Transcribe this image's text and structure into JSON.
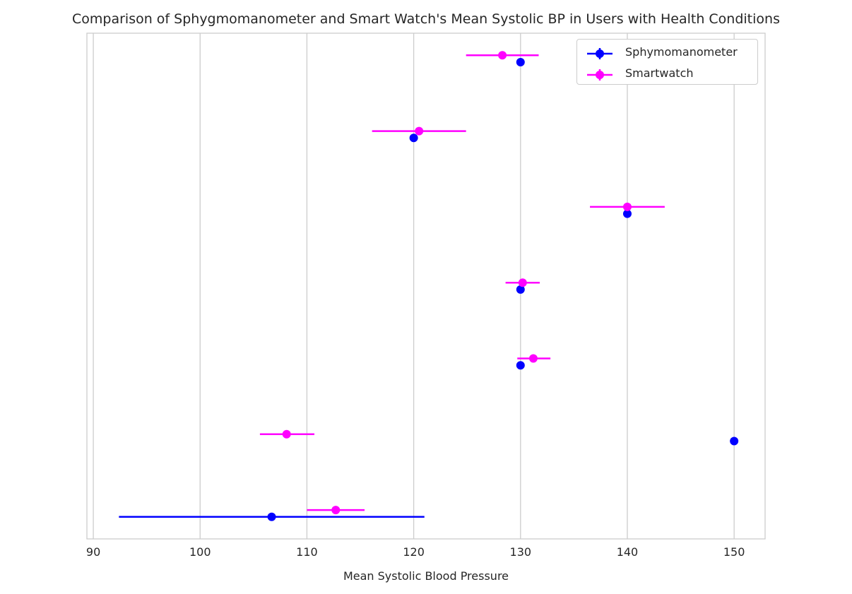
{
  "chart_data": {
    "type": "scatter",
    "title": "Comparison of Sphygmomanometer and Smart Watch's Mean Systolic BP in Users with Health Conditions",
    "xlabel": "Mean Systolic Blood Pressure",
    "ylabel": "",
    "xlim": [
      89.4,
      152.9
    ],
    "xticks": [
      "90",
      "100",
      "110",
      "120",
      "130",
      "140",
      "150"
    ],
    "xtick_values": [
      90,
      100,
      110,
      120,
      130,
      140,
      150
    ],
    "grid": "vertical",
    "legend_position": "top-right",
    "series": [
      {
        "name": "Sphymomanometer",
        "color": "#0000ff",
        "points": [
          {
            "x": 130,
            "xerr_low": 130,
            "xerr_high": 130
          },
          {
            "x": 120,
            "xerr_low": 120,
            "xerr_high": 120
          },
          {
            "x": 140,
            "xerr_low": 140,
            "xerr_high": 140
          },
          {
            "x": 130,
            "xerr_low": 130,
            "xerr_high": 130
          },
          {
            "x": 130,
            "xerr_low": 130,
            "xerr_high": 130
          },
          {
            "x": 150,
            "xerr_low": 150,
            "xerr_high": 150
          },
          {
            "x": 106.7,
            "xerr_low": 92.4,
            "xerr_high": 121.0
          }
        ]
      },
      {
        "name": "Smartwatch",
        "color": "#ff00ff",
        "points": [
          {
            "x": 128.3,
            "xerr_low": 124.9,
            "xerr_high": 131.7
          },
          {
            "x": 120.5,
            "xerr_low": 116.1,
            "xerr_high": 124.9
          },
          {
            "x": 140.0,
            "xerr_low": 136.5,
            "xerr_high": 143.5
          },
          {
            "x": 130.2,
            "xerr_low": 128.6,
            "xerr_high": 131.8
          },
          {
            "x": 131.2,
            "xerr_low": 129.7,
            "xerr_high": 132.8
          },
          {
            "x": 108.1,
            "xerr_low": 105.6,
            "xerr_high": 110.7
          },
          {
            "x": 112.7,
            "xerr_low": 110.0,
            "xerr_high": 115.4
          }
        ]
      }
    ]
  }
}
